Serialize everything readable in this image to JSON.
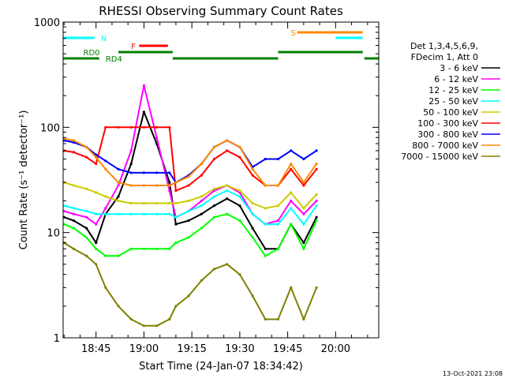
{
  "chart_data": {
    "type": "line",
    "title": "RHESSI Observing Summary Count Rates",
    "xlabel": "Start Time (24-Jan-07 18:34:42)",
    "ylabel": "Count Rate (s⁻¹ detector⁻¹)",
    "yscale": "log",
    "ylim": [
      1,
      1000
    ],
    "xlim": [
      "18:34:42",
      "20:13:30"
    ],
    "x_tick_labels": [
      "18:45",
      "19:00",
      "19:15",
      "19:30",
      "19:45",
      "20:00"
    ],
    "x_tick_values": [
      "18:45",
      "19:00",
      "19:15",
      "19:30",
      "19:45",
      "20:00"
    ],
    "y_tick_labels": [
      "1",
      "10",
      "100",
      "1000"
    ],
    "y_tick_values": [
      1,
      10,
      100,
      1000
    ],
    "legend_header": [
      "Det 1,3,4,5,6,9,",
      "FDecim 1, Att 0"
    ],
    "legend_position": "right",
    "timestamp": "13-Oct-2021 23:08",
    "series": [
      {
        "name": "3 - 6 keV",
        "color": "#000000",
        "x": [
          "18:35",
          "18:38",
          "18:42",
          "18:45",
          "18:48",
          "18:52",
          "18:56",
          "19:00",
          "19:04",
          "19:08",
          "19:10",
          "19:14",
          "19:18",
          "19:22",
          "19:26",
          "19:30",
          "19:34",
          "19:38",
          "19:42",
          "19:46",
          "19:50",
          "19:54"
        ],
        "y": [
          14,
          13,
          11,
          8,
          15,
          22,
          45,
          140,
          70,
          30,
          12,
          13,
          15,
          18,
          21,
          18,
          11,
          7,
          7,
          12,
          8,
          14
        ]
      },
      {
        "name": "6 - 12 keV",
        "color": "#ff00ff",
        "x": [
          "18:35",
          "18:38",
          "18:42",
          "18:45",
          "18:48",
          "18:52",
          "18:56",
          "19:00",
          "19:04",
          "19:08",
          "19:10",
          "19:14",
          "19:18",
          "19:22",
          "19:26",
          "19:30",
          "19:34",
          "19:38",
          "19:42",
          "19:46",
          "19:50",
          "19:54"
        ],
        "y": [
          16,
          15,
          14,
          12,
          17,
          28,
          60,
          250,
          80,
          25,
          14,
          16,
          20,
          25,
          28,
          24,
          15,
          12,
          13,
          20,
          15,
          20
        ]
      },
      {
        "name": "12 - 25 keV",
        "color": "#00ff00",
        "x": [
          "18:35",
          "18:38",
          "18:42",
          "18:45",
          "18:48",
          "18:52",
          "18:56",
          "19:00",
          "19:04",
          "19:08",
          "19:10",
          "19:14",
          "19:18",
          "19:22",
          "19:26",
          "19:30",
          "19:34",
          "19:38",
          "19:42",
          "19:46",
          "19:50",
          "19:54"
        ],
        "y": [
          12,
          11,
          9,
          7,
          6,
          6,
          7,
          7,
          7,
          7,
          8,
          9,
          11,
          14,
          15,
          13,
          9,
          6,
          7,
          12,
          7,
          13
        ]
      },
      {
        "name": "25 - 50 keV",
        "color": "#00ffff",
        "x": [
          "18:35",
          "18:38",
          "18:42",
          "18:45",
          "18:48",
          "18:52",
          "18:56",
          "19:00",
          "19:04",
          "19:08",
          "19:10",
          "19:14",
          "19:18",
          "19:22",
          "19:26",
          "19:30",
          "19:34",
          "19:38",
          "19:42",
          "19:46",
          "19:50",
          "19:54"
        ],
        "y": [
          18,
          17,
          16,
          15,
          15,
          15,
          15,
          15,
          15,
          15,
          14,
          16,
          18,
          22,
          25,
          22,
          15,
          12,
          12,
          17,
          12,
          18
        ]
      },
      {
        "name": "50 - 100 keV",
        "color": "#cccc00",
        "x": [
          "18:35",
          "18:38",
          "18:42",
          "18:45",
          "18:48",
          "18:52",
          "18:56",
          "19:00",
          "19:04",
          "19:08",
          "19:10",
          "19:14",
          "19:18",
          "19:22",
          "19:26",
          "19:30",
          "19:34",
          "19:38",
          "19:42",
          "19:46",
          "19:50",
          "19:54"
        ],
        "y": [
          30,
          28,
          26,
          24,
          22,
          20,
          19,
          19,
          19,
          19,
          19,
          20,
          22,
          26,
          28,
          25,
          19,
          17,
          18,
          24,
          17,
          23
        ]
      },
      {
        "name": "100 - 300 keV",
        "color": "#ff0000",
        "x": [
          "18:35",
          "18:38",
          "18:42",
          "18:45",
          "18:48",
          "18:52",
          "18:56",
          "19:00",
          "19:04",
          "19:08",
          "19:10",
          "19:14",
          "19:18",
          "19:22",
          "19:26",
          "19:30",
          "19:34",
          "19:38",
          "19:42",
          "19:46",
          "19:50",
          "19:54"
        ],
        "y": [
          60,
          58,
          52,
          45,
          100,
          100,
          100,
          100,
          100,
          100,
          25,
          28,
          35,
          50,
          60,
          52,
          35,
          28,
          28,
          40,
          28,
          40
        ]
      },
      {
        "name": "300 - 800 keV",
        "color": "#0000ff",
        "x": [
          "18:35",
          "18:38",
          "18:42",
          "18:45",
          "18:48",
          "18:52",
          "18:56",
          "19:00",
          "19:04",
          "19:08",
          "19:10",
          "19:14",
          "19:18",
          "19:22",
          "19:26",
          "19:30",
          "19:34",
          "19:38",
          "19:42",
          "19:46",
          "19:50",
          "19:54"
        ],
        "y": [
          75,
          72,
          65,
          55,
          48,
          40,
          37,
          37,
          37,
          37,
          30,
          35,
          45,
          65,
          75,
          65,
          42,
          50,
          50,
          60,
          50,
          60
        ]
      },
      {
        "name": "800 - 7000 keV",
        "color": "#ff8800",
        "x": [
          "18:35",
          "18:38",
          "18:42",
          "18:45",
          "18:48",
          "18:52",
          "18:56",
          "19:00",
          "19:04",
          "19:08",
          "19:10",
          "19:14",
          "19:18",
          "19:22",
          "19:26",
          "19:30",
          "19:34",
          "19:38",
          "19:42",
          "19:46",
          "19:50",
          "19:54"
        ],
        "y": [
          78,
          75,
          65,
          52,
          40,
          30,
          28,
          28,
          28,
          28,
          30,
          34,
          45,
          65,
          75,
          65,
          40,
          28,
          28,
          45,
          30,
          45
        ]
      },
      {
        "name": "7000 - 15000 keV",
        "color": "#808000",
        "x": [
          "18:35",
          "18:38",
          "18:42",
          "18:45",
          "18:48",
          "18:52",
          "18:56",
          "19:00",
          "19:04",
          "19:08",
          "19:10",
          "19:14",
          "19:18",
          "19:22",
          "19:26",
          "19:30",
          "19:34",
          "19:38",
          "19:42",
          "19:46",
          "19:50",
          "19:54"
        ],
        "y": [
          8,
          7,
          6,
          5,
          3,
          2,
          1.5,
          1.3,
          1.3,
          1.5,
          2,
          2.5,
          3.5,
          4.5,
          5,
          4,
          2.5,
          1.5,
          1.5,
          3,
          1.5,
          3
        ]
      }
    ],
    "state_bars": [
      {
        "label": "N",
        "color": "#00ffff",
        "segments": [
          [
            "18:34:42",
            "18:44:30"
          ],
          [
            "20:00:00",
            "20:08:30"
          ]
        ]
      },
      {
        "label": "F",
        "color": "#ff0000",
        "segments": [
          [
            "18:58:30",
            "19:07:30"
          ]
        ]
      },
      {
        "label": "S",
        "color": "#ff8800",
        "segments": [
          [
            "19:48:00",
            "20:08:30"
          ]
        ]
      },
      {
        "label": "RD0",
        "color": "#008000",
        "segments": [
          [
            "18:52:00",
            "19:09:00"
          ],
          [
            "19:42:00",
            "20:08:30"
          ]
        ]
      },
      {
        "label": "RD4",
        "color": "#008000",
        "segments": [
          [
            "18:34:42",
            "18:46:00"
          ],
          [
            "19:09:00",
            "19:42:00"
          ],
          [
            "20:09:00",
            "20:13:30"
          ]
        ]
      }
    ]
  }
}
